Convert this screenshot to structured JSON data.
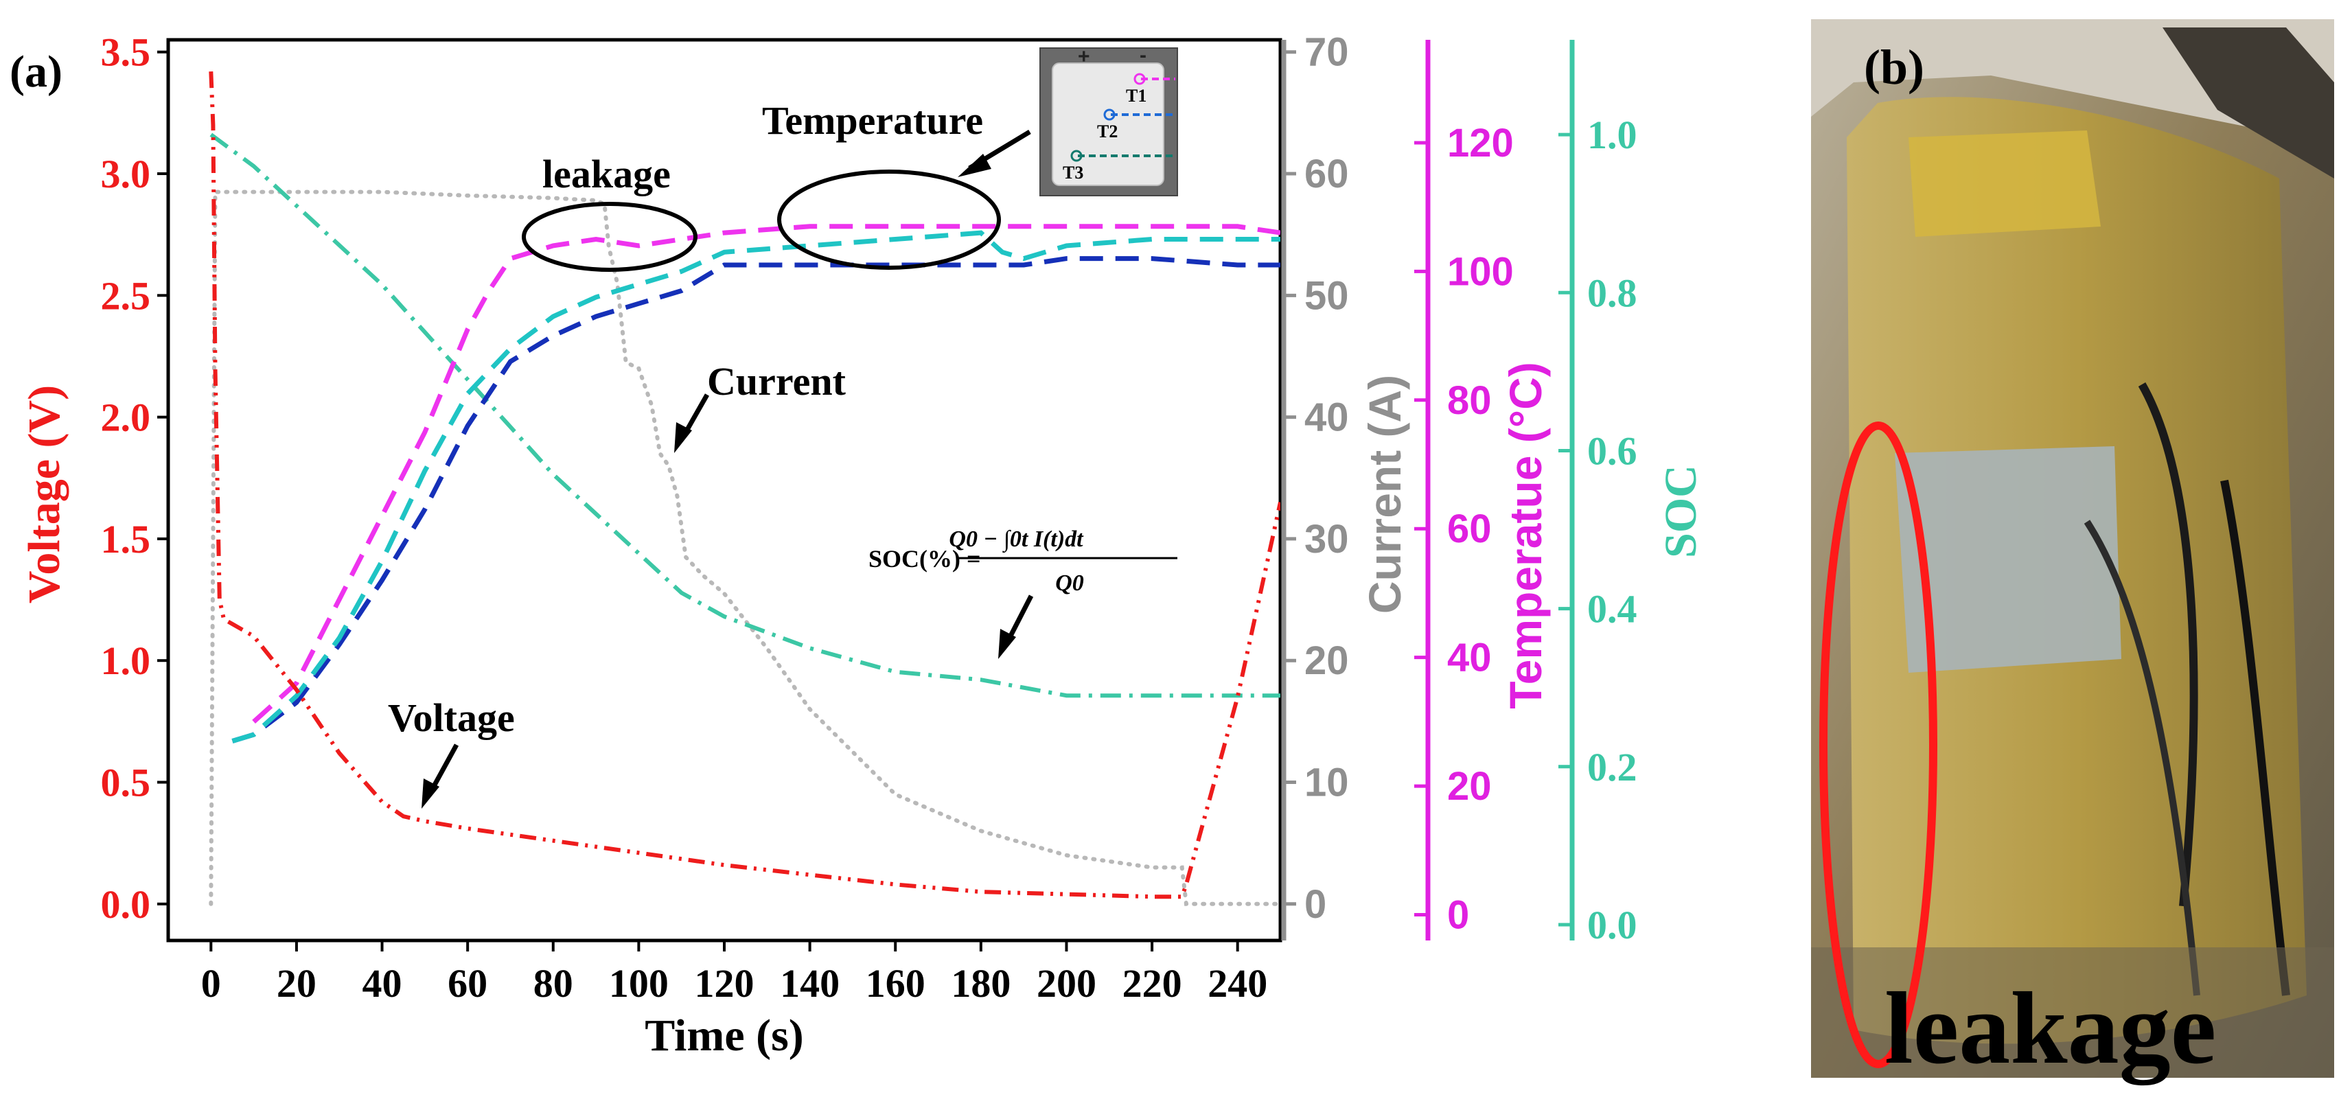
{
  "panels": {
    "a_label": "(a)",
    "b_label": "(b)"
  },
  "annotations": {
    "temperature": "Temperature",
    "leakage": "leakage",
    "current": "Current",
    "voltage": "Voltage",
    "formula": "SOC(%) = (Q0 − ∫0t I(t)dt) / Q0"
  },
  "formula_parts": {
    "lhs": "SOC(%) =",
    "numerator": "Q0 − ∫0t I(t)dt",
    "denominator": "Q0"
  },
  "inset": {
    "labels": [
      "T1",
      "T2",
      "T3"
    ],
    "plus": "+",
    "minus": "-"
  },
  "photo": {
    "caption": "leakage"
  },
  "colors": {
    "voltage": "#ee1c1c",
    "current": "#b8b8b8",
    "current_axis": "#8f8f8f",
    "temperature": "#e020e0",
    "soc": "#3cc7a5",
    "T1": "#ee33ee",
    "T2": "#1fc4c4",
    "T3": "#1530b8",
    "highlight": "#ff1a1a"
  },
  "chart_data": {
    "type": "line",
    "xlabel": "Time (s)",
    "x_ticks": [
      "0",
      "20",
      "40",
      "60",
      "80",
      "100",
      "120",
      "140",
      "160",
      "180",
      "200",
      "220",
      "240"
    ],
    "xlim": [
      -10,
      250
    ],
    "axes": {
      "voltage": {
        "label": "Voltage (V)",
        "ylim": [
          -0.15,
          3.55
        ],
        "ticks": [
          "0.0",
          "0.5",
          "1.0",
          "1.5",
          "2.0",
          "2.5",
          "3.0",
          "3.5"
        ]
      },
      "current": {
        "label": "Current (A)",
        "ylim": [
          -3,
          71
        ],
        "ticks": [
          "0",
          "10",
          "20",
          "30",
          "40",
          "50",
          "60",
          "70"
        ]
      },
      "temperature": {
        "label": "Temperatue (°C)",
        "ylim": [
          -4,
          136
        ],
        "ticks": [
          "0",
          "20",
          "40",
          "60",
          "80",
          "100",
          "120"
        ]
      },
      "soc": {
        "label": "SOC",
        "ylim": [
          -0.02,
          1.12
        ],
        "ticks": [
          "0.0",
          "0.2",
          "0.4",
          "0.6",
          "0.8",
          "1.0"
        ]
      }
    },
    "series": [
      {
        "name": "Voltage",
        "axis": "voltage",
        "x": [
          0,
          0.5,
          1,
          2,
          3,
          5,
          10,
          20,
          30,
          40,
          45,
          50,
          60,
          80,
          100,
          120,
          140,
          160,
          180,
          200,
          220,
          227,
          228,
          240,
          250
        ],
        "y": [
          3.42,
          3.2,
          2.2,
          1.25,
          1.17,
          1.15,
          1.1,
          0.88,
          0.62,
          0.42,
          0.36,
          0.34,
          0.31,
          0.26,
          0.21,
          0.16,
          0.12,
          0.08,
          0.05,
          0.04,
          0.03,
          0.03,
          0.08,
          0.85,
          1.65
        ]
      },
      {
        "name": "Current",
        "axis": "current",
        "x": [
          0,
          0.5,
          1,
          2,
          3,
          5,
          20,
          40,
          60,
          80,
          90,
          92,
          93,
          95,
          97,
          100,
          103,
          105,
          107,
          109,
          111,
          115,
          120,
          130,
          140,
          160,
          180,
          200,
          220,
          227,
          228,
          240,
          250
        ],
        "y": [
          0,
          30,
          58.5,
          58.5,
          58.5,
          58.5,
          58.5,
          58.5,
          58.2,
          58,
          57.8,
          57.5,
          54,
          51,
          44.5,
          44,
          41,
          37,
          36,
          33.5,
          28.5,
          27,
          25.5,
          21,
          16,
          9,
          6,
          4,
          3,
          3,
          0,
          0,
          0
        ]
      },
      {
        "name": "T1",
        "axis": "temperature",
        "x": [
          10,
          20,
          30,
          40,
          50,
          60,
          65,
          70,
          75,
          80,
          90,
          100,
          110,
          120,
          140,
          160,
          180,
          200,
          220,
          240,
          250
        ],
        "y": [
          30,
          36,
          49,
          62,
          75,
          91,
          97,
          102,
          103,
          104,
          105,
          104,
          105,
          106,
          107,
          107,
          107,
          107,
          107,
          107,
          106
        ]
      },
      {
        "name": "T2",
        "axis": "temperature",
        "x": [
          5,
          10,
          20,
          30,
          40,
          50,
          60,
          70,
          80,
          90,
          100,
          110,
          120,
          140,
          160,
          180,
          185,
          190,
          200,
          220,
          240,
          250
        ],
        "y": [
          27,
          28,
          34,
          43,
          55,
          69,
          81,
          88,
          93,
          96,
          98,
          100,
          103,
          104,
          105,
          106,
          103,
          102,
          104,
          105,
          105,
          105
        ]
      },
      {
        "name": "T3",
        "axis": "temperature",
        "x": [
          5,
          10,
          20,
          30,
          40,
          50,
          60,
          70,
          80,
          90,
          100,
          110,
          120,
          140,
          160,
          180,
          190,
          200,
          220,
          240,
          250
        ],
        "y": [
          27,
          28,
          33,
          42,
          52,
          63,
          76,
          86,
          90,
          93,
          95,
          97,
          101,
          101,
          101,
          101,
          101,
          102,
          102,
          101,
          101
        ]
      },
      {
        "name": "SOC",
        "axis": "soc",
        "x": [
          0,
          10,
          20,
          30,
          40,
          50,
          60,
          70,
          80,
          90,
          100,
          110,
          120,
          140,
          160,
          180,
          200,
          220,
          240,
          250
        ],
        "y": [
          1.0,
          0.96,
          0.91,
          0.86,
          0.81,
          0.75,
          0.69,
          0.63,
          0.57,
          0.52,
          0.47,
          0.42,
          0.39,
          0.35,
          0.32,
          0.31,
          0.29,
          0.29,
          0.29,
          0.29
        ]
      }
    ]
  }
}
